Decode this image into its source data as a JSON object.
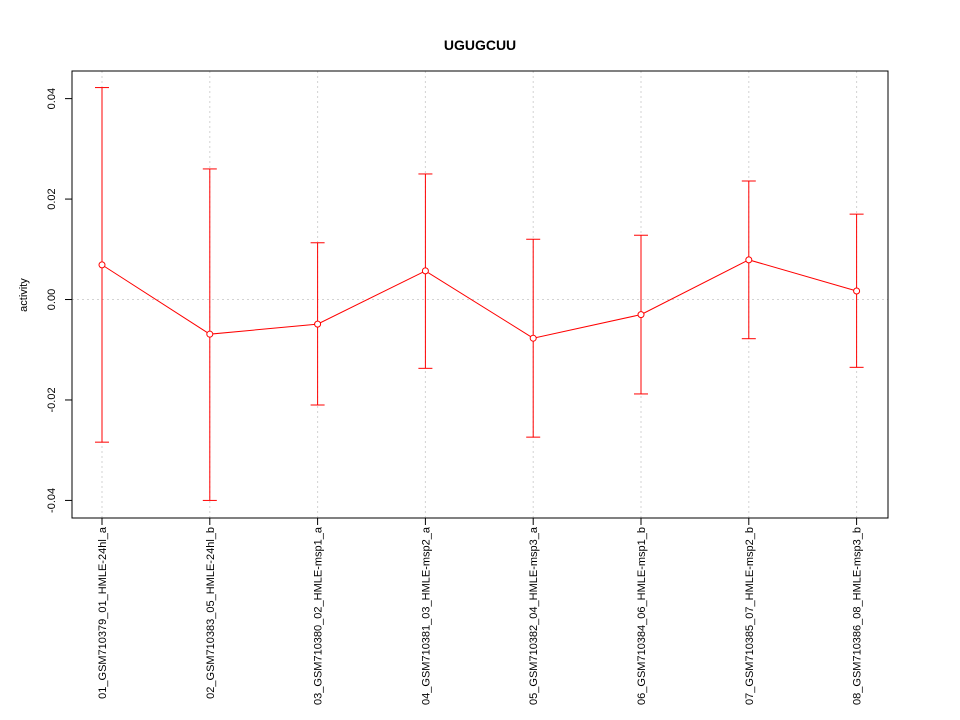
{
  "chart_data": {
    "type": "line",
    "title": "UGUGCUU",
    "ylabel": "activity",
    "xlabel": "",
    "ylim": [
      -0.0435,
      0.0455
    ],
    "yticks": [
      -0.04,
      -0.02,
      0.0,
      0.02,
      0.04
    ],
    "ytick_labels": [
      "-0.04",
      "-0.02",
      "0.00",
      "0.02",
      "0.04"
    ],
    "grid": true,
    "line_color": "#ff0000",
    "grid_color": "#d3d3d3",
    "categories": [
      "01_GSM710379_01_HMLE-24hl_a",
      "02_GSM710383_05_HMLE-24hl_b",
      "03_GSM710380_02_HMLE-msp1_a",
      "04_GSM710381_03_HMLE-msp2_a",
      "05_GSM710382_04_HMLE-msp3_a",
      "06_GSM710384_06_HMLE-msp1_b",
      "07_GSM710385_07_HMLE-msp2_b",
      "08_GSM710386_08_HMLE-msp3_b"
    ],
    "series": [
      {
        "values": [
          0.0069,
          -0.0069,
          -0.0049,
          0.0057,
          -0.0077,
          -0.003,
          0.0079,
          0.0017
        ],
        "upper": [
          0.0422,
          0.026,
          0.0113,
          0.025,
          0.012,
          0.0128,
          0.0236,
          0.017
        ],
        "lower": [
          -0.0284,
          -0.04,
          -0.021,
          -0.0137,
          -0.0274,
          -0.0188,
          -0.0078,
          -0.0135
        ]
      }
    ]
  }
}
